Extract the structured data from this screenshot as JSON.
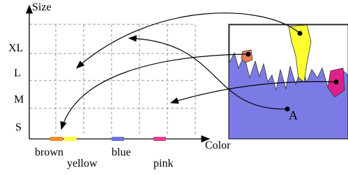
{
  "axes": {
    "y_title": "Size",
    "x_title": "Color"
  },
  "size_labels": [
    "XL",
    "L",
    "M",
    "S"
  ],
  "color_labels": [
    "brown",
    "yellow",
    "blue",
    "pink"
  ],
  "point_label": "A"
}
